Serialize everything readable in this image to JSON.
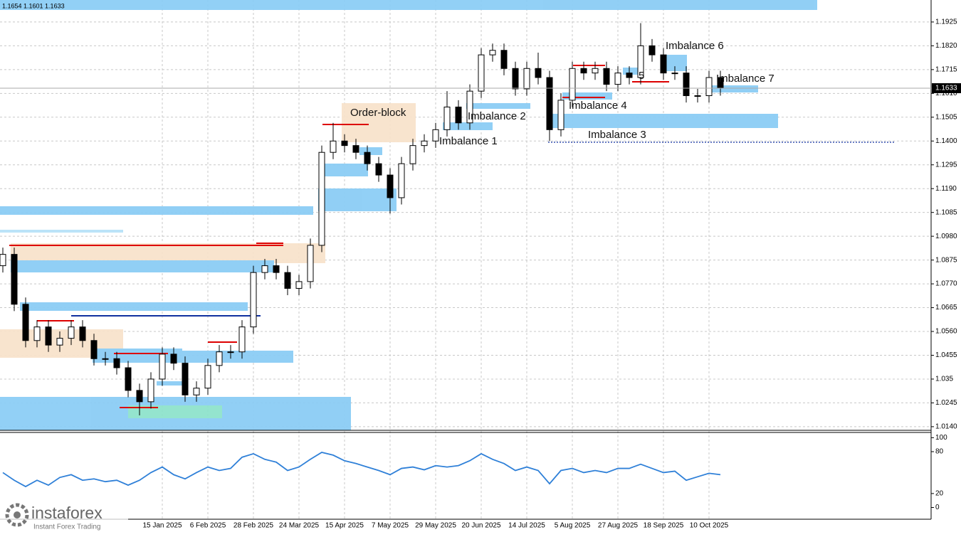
{
  "header_text": "1.1654 1.1601 1.1633",
  "watermark": {
    "brand": "instaforex",
    "tagline": "Instant Forex Trading"
  },
  "chart_data": [
    {
      "type": "candlestick",
      "categories": [
        null,
        null,
        null,
        null,
        null,
        null,
        null,
        null,
        null,
        null,
        null,
        null,
        null,
        null,
        "15 Jan 2025",
        null,
        null,
        null,
        "6 Feb 2025",
        null,
        null,
        null,
        "28 Feb 2025",
        null,
        null,
        null,
        "24 Mar 2025",
        null,
        null,
        null,
        "15 Apr 2025",
        null,
        null,
        null,
        "7 May 2025",
        null,
        null,
        null,
        "29 May 2025",
        null,
        null,
        null,
        "20 Jun 2025",
        null,
        null,
        null,
        "14 Jul 2025",
        null,
        null,
        null,
        "5 Aug 2025",
        null,
        null,
        null,
        "27 Aug 2025",
        null,
        null,
        null,
        "18 Sep 2025",
        null,
        null,
        null,
        "10 Oct 2025",
        null
      ],
      "open": [
        1.085,
        1.09,
        1.068,
        1.052,
        1.058,
        1.05,
        1.053,
        1.058,
        1.052,
        1.044,
        1.044,
        1.04,
        1.03,
        1.025,
        1.035,
        1.046,
        1.042,
        1.028,
        1.031,
        1.041,
        1.047,
        1.047,
        1.058,
        1.082,
        1.085,
        1.082,
        1.075,
        1.078,
        1.094,
        1.135,
        1.14,
        1.138,
        1.135,
        1.13,
        1.125,
        1.115,
        1.13,
        1.138,
        1.14,
        1.145,
        1.155,
        1.148,
        1.162,
        1.178,
        1.18,
        1.172,
        1.163,
        1.172,
        1.168,
        1.145,
        1.158,
        1.172,
        1.17,
        1.172,
        1.165,
        1.17,
        1.168,
        1.182,
        1.178,
        1.17,
        1.17,
        1.16,
        1.16,
        1.168
      ],
      "high": [
        1.093,
        1.093,
        1.071,
        1.061,
        1.061,
        1.056,
        1.061,
        1.061,
        1.055,
        1.047,
        1.047,
        1.043,
        1.033,
        1.038,
        1.049,
        1.049,
        1.045,
        1.034,
        1.044,
        1.05,
        1.05,
        1.061,
        1.085,
        1.088,
        1.088,
        1.085,
        1.081,
        1.097,
        1.138,
        1.148,
        1.143,
        1.141,
        1.138,
        1.133,
        1.128,
        1.133,
        1.141,
        1.143,
        1.148,
        1.162,
        1.158,
        1.165,
        1.181,
        1.183,
        1.183,
        1.175,
        1.175,
        1.179,
        1.171,
        1.161,
        1.175,
        1.175,
        1.175,
        1.175,
        1.173,
        1.173,
        1.192,
        1.185,
        1.181,
        1.173,
        1.173,
        1.163,
        1.171,
        1.171
      ],
      "low": [
        1.082,
        1.065,
        1.049,
        1.049,
        1.047,
        1.047,
        1.05,
        1.049,
        1.041,
        1.041,
        1.037,
        1.027,
        1.019,
        1.022,
        1.032,
        1.039,
        1.025,
        1.025,
        1.028,
        1.038,
        1.044,
        1.044,
        1.055,
        1.079,
        1.079,
        1.072,
        1.072,
        1.075,
        1.091,
        1.132,
        1.135,
        1.132,
        1.127,
        1.122,
        1.108,
        1.112,
        1.127,
        1.135,
        1.137,
        1.142,
        1.145,
        1.145,
        1.159,
        1.175,
        1.169,
        1.16,
        1.16,
        1.165,
        1.14,
        1.142,
        1.155,
        1.167,
        1.167,
        1.162,
        1.162,
        1.165,
        1.165,
        1.175,
        1.167,
        1.167,
        1.157,
        1.157,
        1.157,
        1.16
      ],
      "close": [
        1.09,
        1.068,
        1.052,
        1.058,
        1.05,
        1.053,
        1.058,
        1.052,
        1.044,
        1.044,
        1.04,
        1.03,
        1.025,
        1.035,
        1.046,
        1.042,
        1.028,
        1.031,
        1.041,
        1.047,
        1.047,
        1.058,
        1.082,
        1.085,
        1.082,
        1.075,
        1.078,
        1.094,
        1.135,
        1.14,
        1.138,
        1.135,
        1.13,
        1.125,
        1.115,
        1.13,
        1.138,
        1.14,
        1.145,
        1.155,
        1.148,
        1.162,
        1.178,
        1.18,
        1.172,
        1.163,
        1.172,
        1.168,
        1.145,
        1.158,
        1.172,
        1.17,
        1.172,
        1.165,
        1.17,
        1.168,
        1.182,
        1.178,
        1.17,
        1.17,
        1.16,
        1.16,
        1.168,
        1.1633
      ],
      "up_color": "#ffffff",
      "down_color": "#000000",
      "wick_color": "#000000",
      "last_price": 1.1633,
      "ylim": [
        1.0124,
        1.2022
      ],
      "yticks": [
        {
          "value": 1.014,
          "label": "1.0140"
        },
        1.0245,
        1.035,
        1.0455,
        {
          "value": 1.056,
          "label": "1.0560"
        },
        1.0665,
        {
          "value": 1.077,
          "label": "1.0770"
        },
        1.0875,
        {
          "value": 1.098,
          "label": "1.0980"
        },
        1.1085,
        {
          "value": 1.119,
          "label": "1.1190"
        },
        1.1295,
        {
          "value": 1.14,
          "label": "1.1400"
        },
        1.1505,
        {
          "value": 1.161,
          "label": "1.1610"
        },
        1.1715,
        {
          "value": 1.182,
          "label": "1.1820"
        },
        1.1925
      ],
      "grid": true,
      "annotations": [
        "Order-block",
        "Imbalance 1",
        "Imbalance 2",
        "Imbalance 3",
        "Imbalance 4",
        "5",
        "Imbalance 6",
        "Imbalance 7"
      ]
    },
    {
      "type": "line",
      "color": "#2f80d8",
      "values": [
        50,
        39,
        30,
        39,
        32,
        43,
        47,
        39,
        41,
        37,
        39,
        32,
        39,
        50,
        58,
        47,
        41,
        50,
        58,
        53,
        56,
        72,
        77,
        69,
        65,
        53,
        58,
        69,
        79,
        75,
        67,
        63,
        58,
        53,
        47,
        56,
        58,
        54,
        60,
        58,
        60,
        67,
        77,
        69,
        63,
        53,
        58,
        53,
        34,
        53,
        56,
        50,
        53,
        50,
        56,
        56,
        62,
        56,
        50,
        52,
        39,
        44,
        49,
        47
      ],
      "ylim": [
        -16.8,
        107.5
      ],
      "yticks": [
        100,
        80,
        20,
        0
      ]
    }
  ]
}
